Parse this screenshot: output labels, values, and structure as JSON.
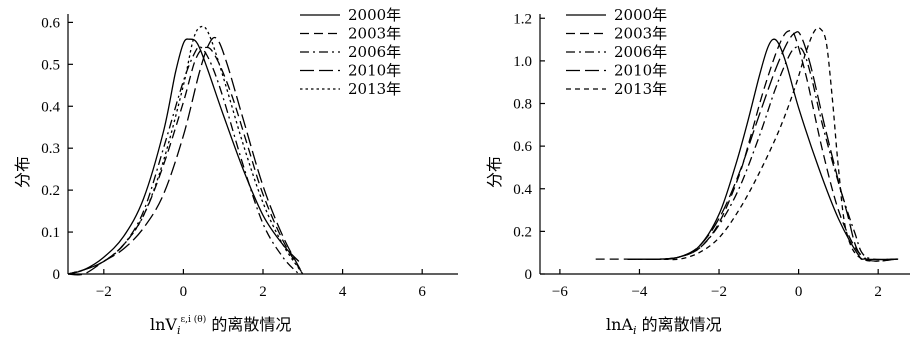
{
  "chart_data": [
    {
      "type": "line",
      "xlabel": "lnV",
      "xlabel_sub": "i",
      "xlabel_sup": "ε,i (θ)",
      "xlabel_suffix": " 的离散情况",
      "ylabel": "分布",
      "xlim": [
        -2.9,
        6.9
      ],
      "ylim": [
        0,
        0.62
      ],
      "xticks": [
        -2,
        0,
        2,
        4,
        6
      ],
      "yticks": [
        0,
        0.1,
        0.2,
        0.3,
        0.4,
        0.5,
        0.6
      ],
      "xtick_labels": [
        "−2",
        "0",
        "2",
        "4",
        "6"
      ],
      "ytick_labels": [
        "0",
        "0.1",
        "0.2",
        "0.3",
        "0.4",
        "0.5",
        "0.6"
      ],
      "legend_position": "top-right",
      "series": [
        {
          "name": "2000年",
          "dash": "solid",
          "x": [
            -2.9,
            -2.5,
            -2,
            -1.5,
            -1,
            -0.5,
            -0.2,
            0,
            0.15,
            0.35,
            0.6,
            1,
            1.5,
            2,
            2.5,
            2.9
          ],
          "y": [
            0.0,
            0.01,
            0.04,
            0.09,
            0.18,
            0.34,
            0.48,
            0.55,
            0.56,
            0.55,
            0.49,
            0.38,
            0.25,
            0.14,
            0.07,
            0.03
          ]
        },
        {
          "name": "2003年",
          "dash": "dash",
          "x": [
            -2.9,
            -2.5,
            -2,
            -1.5,
            -1,
            -0.5,
            0,
            0.3,
            0.55,
            0.8,
            1.2,
            1.6,
            2,
            2.5,
            3
          ],
          "y": [
            0.0,
            0.01,
            0.03,
            0.07,
            0.14,
            0.26,
            0.41,
            0.51,
            0.54,
            0.52,
            0.43,
            0.31,
            0.19,
            0.08,
            0.0
          ]
        },
        {
          "name": "2006年",
          "dash": "dashdot",
          "x": [
            -2.9,
            -2.5,
            -2,
            -1.5,
            -1,
            -0.5,
            0,
            0.3,
            0.45,
            0.7,
            1,
            1.5,
            2,
            2.5,
            2.9
          ],
          "y": [
            0.0,
            0.01,
            0.03,
            0.07,
            0.15,
            0.3,
            0.46,
            0.53,
            0.54,
            0.5,
            0.42,
            0.26,
            0.12,
            0.04,
            0.0
          ]
        },
        {
          "name": "2010年",
          "dash": "longdash",
          "x": [
            -2.9,
            -2.5,
            -2,
            -1.5,
            -1,
            -0.5,
            0,
            0.4,
            0.65,
            0.85,
            1.1,
            1.5,
            2,
            2.5,
            3
          ],
          "y": [
            0.0,
            0.0,
            0.03,
            0.06,
            0.11,
            0.19,
            0.33,
            0.48,
            0.55,
            0.56,
            0.5,
            0.37,
            0.21,
            0.09,
            0.0
          ]
        },
        {
          "name": "2013年",
          "dash": "dot",
          "x": [
            -2.9,
            -2.5,
            -2,
            -1.5,
            -1,
            -0.5,
            0,
            0.25,
            0.45,
            0.65,
            1,
            1.5,
            2,
            2.5,
            3
          ],
          "y": [
            0.0,
            0.01,
            0.03,
            0.07,
            0.14,
            0.27,
            0.45,
            0.56,
            0.59,
            0.57,
            0.47,
            0.31,
            0.17,
            0.07,
            0.0
          ]
        }
      ]
    },
    {
      "type": "line",
      "xlabel": "lnA",
      "xlabel_sub": "i",
      "xlabel_suffix": " 的离散情况",
      "ylabel": "分布",
      "xlim": [
        -6.5,
        2.8
      ],
      "ylim": [
        0,
        1.22
      ],
      "xticks": [
        -6,
        -4,
        -2,
        0,
        2
      ],
      "yticks": [
        0,
        0.2,
        0.4,
        0.6,
        0.8,
        1.0,
        1.2
      ],
      "xtick_labels": [
        "−6",
        "−4",
        "−2",
        "0",
        "2"
      ],
      "ytick_labels": [
        "0",
        "0.2",
        "0.4",
        "0.6",
        "0.8",
        "1.0",
        "1.2"
      ],
      "legend_position": "top-left",
      "series": [
        {
          "name": "2000年",
          "dash": "solid",
          "x": [
            -4.3,
            -3.5,
            -3,
            -2.5,
            -2,
            -1.6,
            -1.3,
            -1,
            -0.8,
            -0.65,
            -0.5,
            -0.3,
            0,
            0.5,
            1,
            1.5,
            1.7,
            2.5
          ],
          "y": [
            0.07,
            0.07,
            0.08,
            0.13,
            0.28,
            0.5,
            0.7,
            0.92,
            1.05,
            1.1,
            1.08,
            0.98,
            0.78,
            0.5,
            0.26,
            0.09,
            0.07,
            0.07
          ]
        },
        {
          "name": "2003年",
          "dash": "dash",
          "x": [
            -5.1,
            -4,
            -3.3,
            -3,
            -2.5,
            -2,
            -1.5,
            -1.2,
            -0.9,
            -0.6,
            -0.4,
            -0.25,
            -0.1,
            0.2,
            0.6,
            1,
            1.4,
            1.7
          ],
          "y": [
            0.07,
            0.07,
            0.07,
            0.08,
            0.12,
            0.24,
            0.46,
            0.65,
            0.85,
            1.02,
            1.11,
            1.14,
            1.12,
            0.92,
            0.58,
            0.3,
            0.13,
            0.07
          ]
        },
        {
          "name": "2006年",
          "dash": "dashdot",
          "x": [
            -4.3,
            -3.5,
            -3,
            -2.5,
            -2,
            -1.5,
            -1,
            -0.6,
            -0.3,
            -0.1,
            0.1,
            0.3,
            0.6,
            1,
            1.4,
            1.7,
            2.5
          ],
          "y": [
            0.07,
            0.07,
            0.08,
            0.12,
            0.23,
            0.4,
            0.64,
            0.86,
            1.0,
            1.06,
            1.05,
            0.94,
            0.7,
            0.43,
            0.2,
            0.08,
            0.07
          ]
        },
        {
          "name": "2010年",
          "dash": "longdash",
          "x": [
            -4.3,
            -3.5,
            -3,
            -2.5,
            -2,
            -1.5,
            -1,
            -0.6,
            -0.3,
            -0.1,
            0.05,
            0.3,
            0.7,
            1.2,
            1.6,
            2.5
          ],
          "y": [
            0.07,
            0.07,
            0.08,
            0.13,
            0.26,
            0.47,
            0.74,
            0.95,
            1.08,
            1.13,
            1.12,
            0.98,
            0.66,
            0.3,
            0.08,
            0.07
          ]
        },
        {
          "name": "2013年",
          "dash": "shortdash",
          "x": [
            -4.3,
            -3.5,
            -3,
            -2.5,
            -2,
            -1.5,
            -1,
            -0.5,
            -0.1,
            0.2,
            0.4,
            0.55,
            0.7,
            0.85,
            1,
            1.2,
            1.6,
            2.5
          ],
          "y": [
            0.07,
            0.07,
            0.07,
            0.1,
            0.17,
            0.3,
            0.47,
            0.67,
            0.87,
            1.05,
            1.14,
            1.15,
            1.08,
            0.82,
            0.5,
            0.2,
            0.07,
            0.07
          ]
        }
      ]
    }
  ]
}
